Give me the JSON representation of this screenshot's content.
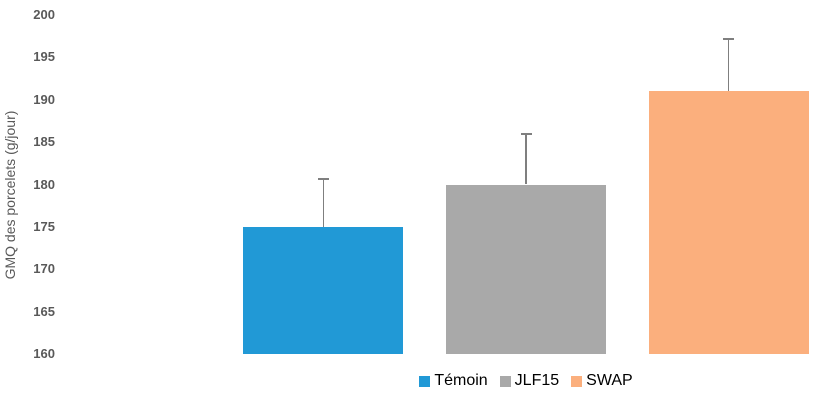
{
  "chart_data": {
    "type": "bar",
    "categories": [
      "Témoin",
      "JLF15",
      "SWAP"
    ],
    "values": [
      175,
      180,
      191
    ],
    "error_plus": [
      5.6,
      6.0,
      6.2
    ],
    "colors": [
      "#2199d6",
      "#a9a9a9",
      "#fbaf7d"
    ],
    "title": "",
    "xlabel": "",
    "ylabel": "GMQ des porcelets (g/jour)",
    "ylim": [
      160,
      200
    ],
    "ytick_step": 5,
    "ytick_labels": [
      "200",
      "195",
      "190",
      "185",
      "180",
      "175",
      "170",
      "165",
      "160"
    ],
    "grid": false,
    "legend": [
      {
        "label": "Témoin",
        "color": "#2199d6"
      },
      {
        "label": "JLF15",
        "color": "#a9a9a9"
      },
      {
        "label": "SWAP",
        "color": "#fbaf7d"
      }
    ],
    "legend_position": "bottom",
    "error_bar_color": "#7f7f7f",
    "axis_text_color": "#595959"
  }
}
